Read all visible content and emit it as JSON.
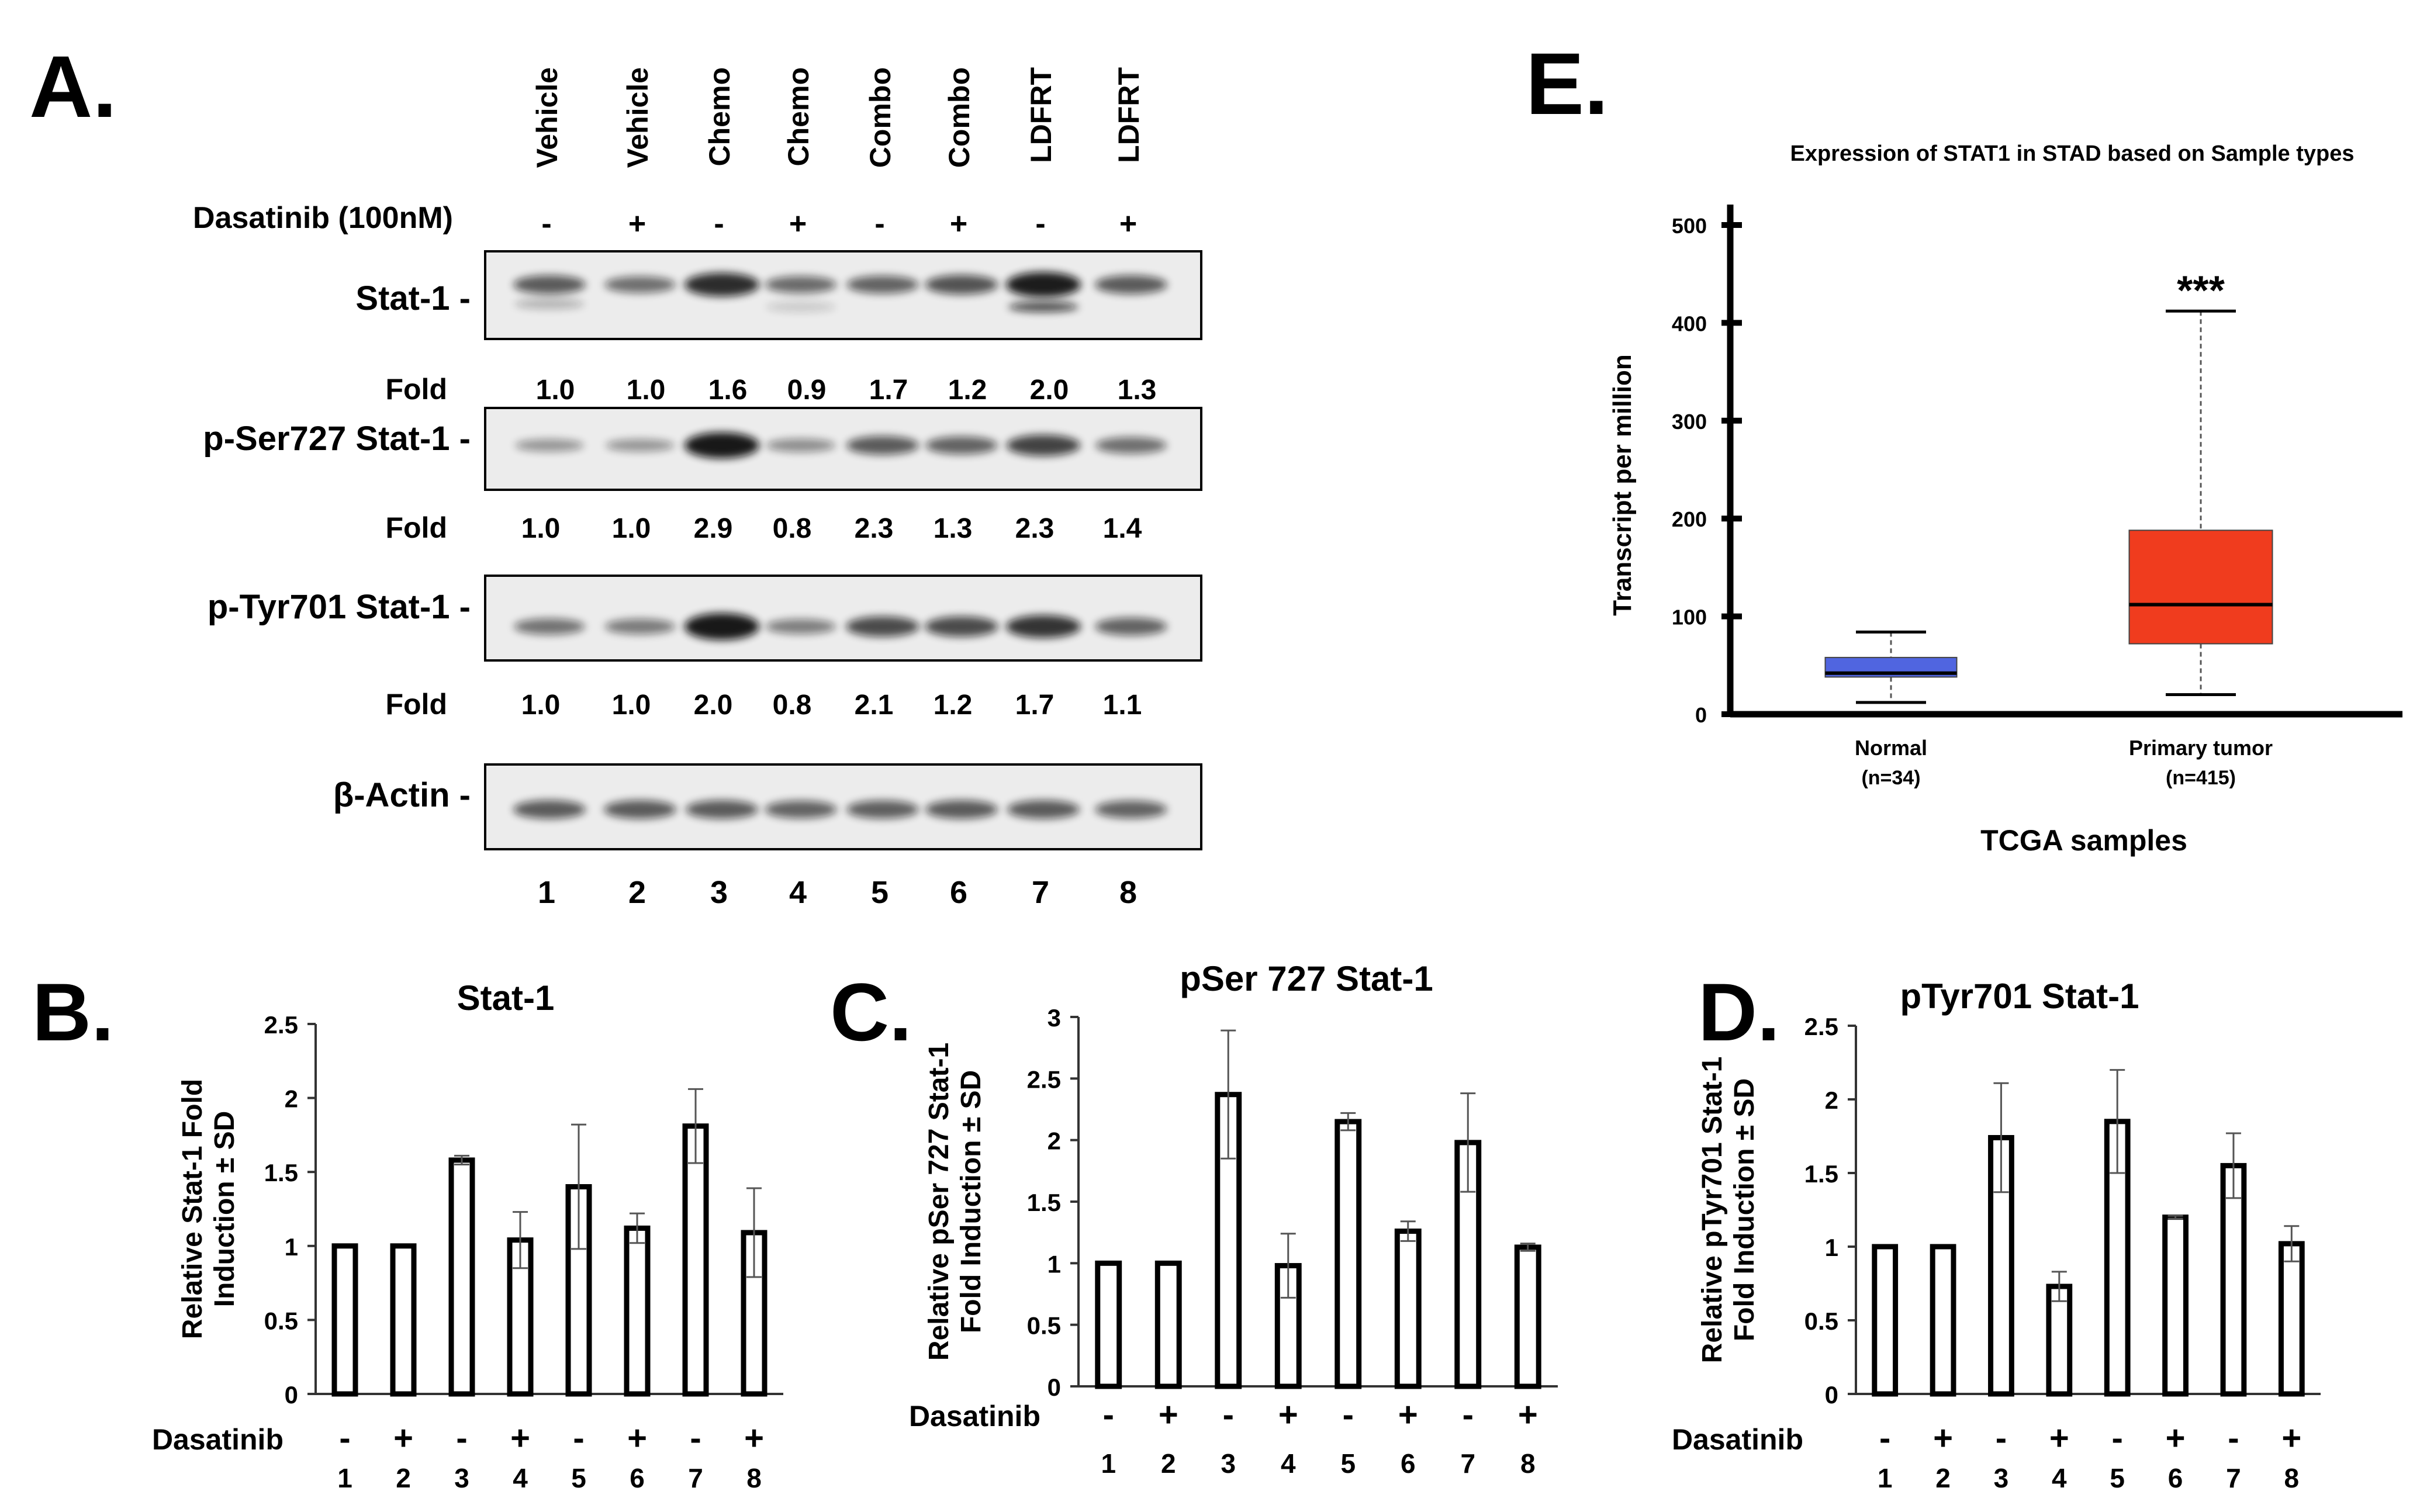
{
  "panelA": {
    "letter": "A.",
    "columns": [
      "Vehicle",
      "Vehicle",
      "Chemo",
      "Chemo",
      "Combo",
      "Combo",
      "LDFRT",
      "LDFRT"
    ],
    "treatment_label": "Dasatinib (100nM)",
    "treatment_signs": [
      "-",
      "+",
      "-",
      "+",
      "-",
      "+",
      "-",
      "+"
    ],
    "fold_label": "Fold",
    "lane_numbers": [
      "1",
      "2",
      "3",
      "4",
      "5",
      "6",
      "7",
      "8"
    ],
    "blots": [
      {
        "label": "Stat-1 -",
        "folds": [
          "1.0",
          "1.0",
          "1.6",
          "0.9",
          "1.7",
          "1.2",
          "2.0",
          "1.3"
        ],
        "intensity": [
          1.0,
          0.75,
          1.6,
          0.8,
          0.9,
          1.1,
          1.8,
          1.0
        ]
      },
      {
        "label": "p-Ser727 Stat-1 -",
        "folds": [
          "1.0",
          "1.0",
          "2.9",
          "0.8",
          "2.3",
          "1.3",
          "2.3",
          "1.4"
        ],
        "intensity": [
          0.25,
          0.25,
          1.9,
          0.35,
          1.0,
          0.9,
          1.3,
          0.75
        ]
      },
      {
        "label": "p-Tyr701 Stat-1 -",
        "folds": [
          "1.0",
          "1.0",
          "2.0",
          "0.8",
          "2.1",
          "1.2",
          "1.7",
          "1.1"
        ],
        "intensity": [
          0.7,
          0.6,
          2.0,
          0.55,
          1.2,
          1.2,
          1.5,
          0.9
        ]
      },
      {
        "label": "β-Actin -",
        "folds": [],
        "intensity": [
          1.0,
          1.0,
          1.0,
          0.9,
          0.95,
          1.0,
          1.0,
          0.9
        ]
      }
    ]
  },
  "chart_data": [
    {
      "panel": "B.",
      "type": "bar",
      "title": "Stat-1",
      "ylabel": [
        "Relative Stat-1 Fold",
        "Induction  ± SD"
      ],
      "ylim": [
        0,
        2.5
      ],
      "yticks": [
        "0",
        "0.5",
        "1",
        "1.5",
        "2",
        "2.5"
      ],
      "categories": [
        "1",
        "2",
        "3",
        "4",
        "5",
        "6",
        "7",
        "8"
      ],
      "dasatinib_label": "Dasatinib",
      "dasatinib": [
        "-",
        "+",
        "-",
        "+",
        "-",
        "+",
        "-",
        "+"
      ],
      "values": [
        1.0,
        1.0,
        1.58,
        1.04,
        1.4,
        1.12,
        1.81,
        1.09
      ],
      "errors": [
        0,
        0,
        0.03,
        0.19,
        0.42,
        0.1,
        0.25,
        0.3
      ]
    },
    {
      "panel": "C.",
      "type": "bar",
      "title": "pSer 727 Stat-1",
      "ylabel": [
        "Relative pSer 727 Stat-1",
        "Fold Induction ± SD"
      ],
      "ylim": [
        0,
        3
      ],
      "yticks": [
        "0",
        "0.5",
        "1",
        "1.5",
        "2",
        "2.5",
        "3"
      ],
      "categories": [
        "1",
        "2",
        "3",
        "4",
        "5",
        "6",
        "7",
        "8"
      ],
      "dasatinib_label": "Dasatinib",
      "dasatinib": [
        "-",
        "+",
        "-",
        "+",
        "-",
        "+",
        "-",
        "+"
      ],
      "values": [
        1.0,
        1.0,
        2.37,
        0.98,
        2.15,
        1.26,
        1.98,
        1.13
      ],
      "errors": [
        0,
        0,
        0.52,
        0.26,
        0.07,
        0.08,
        0.4,
        0.03
      ]
    },
    {
      "panel": "D.",
      "type": "bar",
      "title": "pTyr701 Stat-1",
      "ylabel": [
        "Relative pTyr701 Stat-1",
        "Fold Induction ± SD"
      ],
      "ylim": [
        0,
        2.5
      ],
      "yticks": [
        "0",
        "0.5",
        "1",
        "1.5",
        "2",
        "2.5"
      ],
      "categories": [
        "1",
        "2",
        "3",
        "4",
        "5",
        "6",
        "7",
        "8"
      ],
      "dasatinib_label": "Dasatinib",
      "dasatinib": [
        "-",
        "+",
        "-",
        "+",
        "-",
        "+",
        "-",
        "+"
      ],
      "values": [
        1.0,
        1.0,
        1.74,
        0.73,
        1.85,
        1.2,
        1.55,
        1.02
      ],
      "errors": [
        0,
        0,
        0.37,
        0.1,
        0.35,
        0.01,
        0.22,
        0.12
      ]
    },
    {
      "panel": "E.",
      "type": "box",
      "title": "Expression of STAT1 in STAD based on Sample types",
      "ylabel": "Transcript per million",
      "xlabel": "TCGA samples",
      "ylim": [
        0,
        500
      ],
      "yticks": [
        "0",
        "100",
        "200",
        "300",
        "400",
        "500"
      ],
      "groups": [
        {
          "name": "Normal",
          "n_label": "(n=34)",
          "color": "#5065e0",
          "min": 12,
          "q1": 38,
          "median": 42,
          "q3": 58,
          "max": 84,
          "annotation": ""
        },
        {
          "name": "Primary tumor",
          "n_label": "(n=415)",
          "color": "#f03c1e",
          "min": 20,
          "q1": 72,
          "median": 112,
          "q3": 188,
          "max": 412,
          "annotation": "***"
        }
      ],
      "annotation_color": "#e81c1c"
    }
  ]
}
